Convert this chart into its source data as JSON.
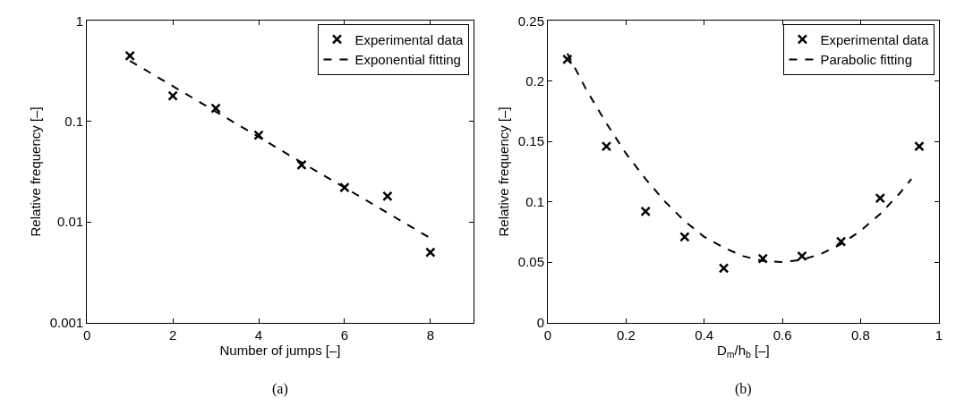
{
  "chart_data": [
    {
      "type": "scatter",
      "xlabel": "Number of jumps [–]",
      "ylabel": "Relative frequency [–]",
      "annotations": [
        "(a)"
      ],
      "log": "y",
      "xlim": [
        0,
        9
      ],
      "xticks": [
        0,
        2,
        4,
        6,
        8
      ],
      "ylim": [
        0.001,
        1
      ],
      "yticks": [
        0.001,
        0.01,
        0.1,
        1
      ],
      "grid": false,
      "legend": "top right",
      "series": [
        {
          "name": "Experimental data",
          "marker": "cross",
          "color": "#000000",
          "x": [
            1,
            2,
            3,
            4,
            5,
            6,
            7,
            8
          ],
          "values": [
            0.45,
            0.18,
            0.135,
            0.073,
            0.037,
            0.022,
            0.018,
            0.005
          ]
        },
        {
          "name": "Exponential fitting",
          "type": "line",
          "line_style": "dashed",
          "marker": "none",
          "color": "#000000",
          "x": [
            1,
            2,
            3,
            4,
            5,
            6,
            7,
            8
          ],
          "values": [
            0.4,
            0.224,
            0.125,
            0.07,
            0.039,
            0.022,
            0.0123,
            0.0069
          ]
        }
      ]
    },
    {
      "type": "scatter",
      "xlabel": "D$_{m}$/h$_{b}$ [–]",
      "ylabel": "Relative frequency [–]",
      "annotations": [
        "(b)"
      ],
      "xlim": [
        0,
        1
      ],
      "xticks": [
        0,
        0.2,
        0.4,
        0.6,
        0.8,
        1
      ],
      "ylim": [
        0,
        0.25
      ],
      "yticks": [
        0,
        0.05,
        0.1,
        0.15,
        0.2,
        0.25
      ],
      "grid": false,
      "legend": "top right",
      "series": [
        {
          "name": "Experimental data",
          "marker": "cross",
          "color": "#000000",
          "x": [
            0.05,
            0.15,
            0.25,
            0.35,
            0.45,
            0.55,
            0.65,
            0.75,
            0.85,
            0.95
          ],
          "values": [
            0.218,
            0.146,
            0.092,
            0.071,
            0.045,
            0.053,
            0.055,
            0.067,
            0.103,
            0.146
          ]
        },
        {
          "name": "Parabolic fitting",
          "type": "line",
          "line_style": "dashed",
          "marker": "none",
          "color": "#000000",
          "x": [
            0.05,
            0.1,
            0.15,
            0.2,
            0.25,
            0.3,
            0.35,
            0.4,
            0.45,
            0.5,
            0.55,
            0.6,
            0.65,
            0.7,
            0.75,
            0.8,
            0.85,
            0.9,
            0.93
          ],
          "values": [
            0.223,
            0.192,
            0.165,
            0.14,
            0.119,
            0.1,
            0.084,
            0.071,
            0.062,
            0.055,
            0.051,
            0.05,
            0.052,
            0.057,
            0.065,
            0.076,
            0.09,
            0.107,
            0.119
          ]
        }
      ]
    }
  ]
}
